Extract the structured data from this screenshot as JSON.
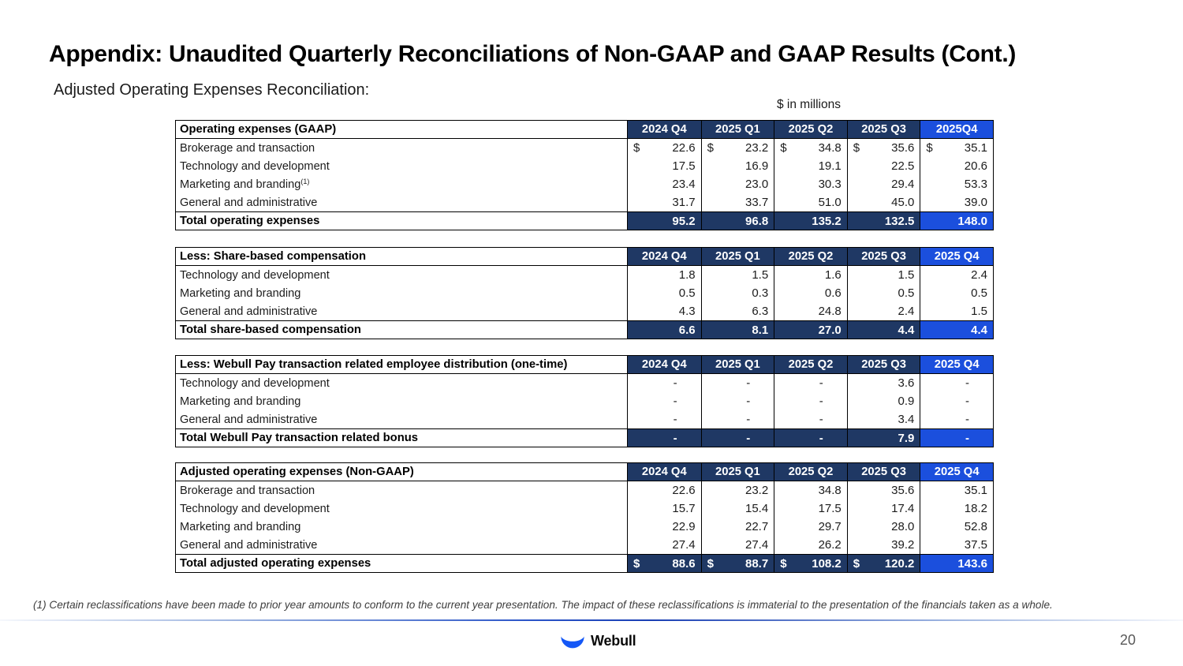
{
  "page": {
    "title": "Appendix: Unaudited Quarterly Reconciliations of Non-GAAP and GAAP Results (Cont.)",
    "subtitle": "Adjusted Operating Expenses Reconciliation:",
    "units_label": "$ in millions",
    "footnote": "(1) Certain reclassifications have been made to prior year amounts to conform to the current year presentation. The impact of these reclassifications is immaterial to the presentation of the financials taken as a whole.",
    "footer": {
      "brand": "Webull",
      "page_number": "20",
      "logo_icon": "crescent-bull-icon"
    }
  },
  "colors": {
    "navy": "#1f3864",
    "accent_blue": "#1b4fdd",
    "logo_blue": "#1457f6"
  },
  "tables": [
    {
      "header_label": "Operating expenses (GAAP)",
      "columns": [
        "2024 Q4",
        "2025 Q1",
        "2025 Q2",
        "2025 Q3",
        "2025Q4"
      ],
      "rows": [
        {
          "label": "Brokerage and transaction",
          "values": [
            "22.6",
            "23.2",
            "34.8",
            "35.6",
            "35.1"
          ],
          "dollars": [
            true,
            true,
            true,
            true,
            true
          ]
        },
        {
          "label": "Technology and development",
          "values": [
            "17.5",
            "16.9",
            "19.1",
            "22.5",
            "20.6"
          ]
        },
        {
          "label": "Marketing and branding",
          "sup": "(1)",
          "values": [
            "23.4",
            "23.0",
            "30.3",
            "29.4",
            "53.3"
          ]
        },
        {
          "label": "General and administrative",
          "values": [
            "31.7",
            "33.7",
            "51.0",
            "45.0",
            "39.0"
          ]
        }
      ],
      "total": {
        "label": "Total operating expenses",
        "values": [
          "95.2",
          "96.8",
          "135.2",
          "132.5",
          "148.0"
        ]
      }
    },
    {
      "header_label": "Less: Share-based compensation",
      "columns": [
        "2024 Q4",
        "2025 Q1",
        "2025 Q2",
        "2025 Q3",
        "2025 Q4"
      ],
      "rows": [
        {
          "label": "Technology and development",
          "values": [
            "1.8",
            "1.5",
            "1.6",
            "1.5",
            "2.4"
          ]
        },
        {
          "label": "Marketing and branding",
          "values": [
            "0.5",
            "0.3",
            "0.6",
            "0.5",
            "0.5"
          ]
        },
        {
          "label": "General and administrative",
          "values": [
            "4.3",
            "6.3",
            "24.8",
            "2.4",
            "1.5"
          ]
        }
      ],
      "total": {
        "label": "Total share-based compensation",
        "values": [
          "6.6",
          "8.1",
          "27.0",
          "4.4",
          "4.4"
        ]
      }
    },
    {
      "header_label": "Less: Webull Pay transaction related employee distribution (one-time)",
      "columns": [
        "2024 Q4",
        "2025 Q1",
        "2025 Q2",
        "2025 Q3",
        "2025 Q4"
      ],
      "rows": [
        {
          "label": "Technology and development",
          "values": [
            "-",
            "-",
            "-",
            "3.6",
            "-"
          ]
        },
        {
          "label": "Marketing and branding",
          "values": [
            "-",
            "-",
            "-",
            "0.9",
            "-"
          ]
        },
        {
          "label": "General and administrative",
          "values": [
            "-",
            "-",
            "-",
            "3.4",
            "-"
          ]
        }
      ],
      "total": {
        "label": "Total Webull Pay transaction related bonus",
        "values": [
          "-",
          "-",
          "-",
          "7.9",
          "-"
        ]
      }
    },
    {
      "header_label": "Adjusted operating expenses (Non-GAAP)",
      "columns": [
        "2024 Q4",
        "2025 Q1",
        "2025 Q2",
        "2025 Q3",
        "2025 Q4"
      ],
      "rows": [
        {
          "label": "Brokerage and transaction",
          "values": [
            "22.6",
            "23.2",
            "34.8",
            "35.6",
            "35.1"
          ]
        },
        {
          "label": "Technology and development",
          "values": [
            "15.7",
            "15.4",
            "17.5",
            "17.4",
            "18.2"
          ]
        },
        {
          "label": "Marketing and branding",
          "values": [
            "22.9",
            "22.7",
            "29.7",
            "28.0",
            "52.8"
          ]
        },
        {
          "label": "General and administrative",
          "values": [
            "27.4",
            "27.4",
            "26.2",
            "39.2",
            "37.5"
          ]
        }
      ],
      "total": {
        "label": "Total adjusted operating expenses",
        "values": [
          "88.6",
          "88.7",
          "108.2",
          "120.2",
          "143.6"
        ],
        "dollars": [
          true,
          true,
          true,
          true,
          false
        ]
      }
    }
  ],
  "layout_tops": [
    152,
    313,
    450,
    586
  ]
}
